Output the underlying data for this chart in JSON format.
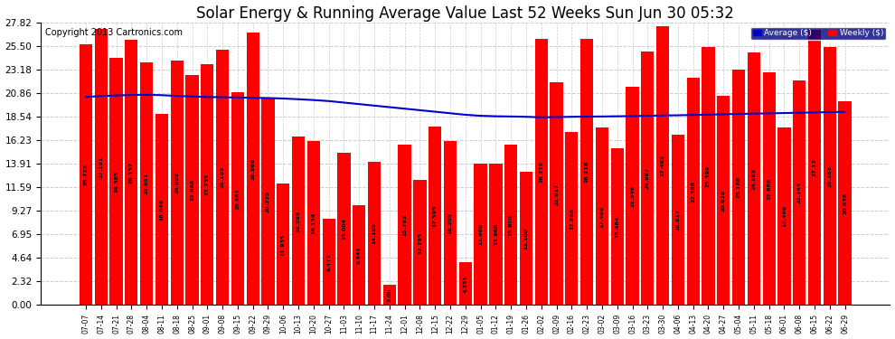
{
  "title": "Solar Energy & Running Average Value Last 52 Weeks Sun Jun 30 05:32",
  "copyright": "Copyright 2013 Cartronics.com",
  "categories": [
    "07-07",
    "07-14",
    "07-21",
    "07-28",
    "08-04",
    "08-11",
    "08-18",
    "08-25",
    "09-01",
    "09-08",
    "09-15",
    "09-22",
    "09-29",
    "10-06",
    "10-13",
    "10-20",
    "10-27",
    "11-03",
    "11-10",
    "11-17",
    "11-24",
    "12-01",
    "12-08",
    "12-15",
    "12-22",
    "12-29",
    "01-05",
    "01-12",
    "01-19",
    "01-26",
    "02-02",
    "02-09",
    "02-16",
    "02-23",
    "03-02",
    "03-09",
    "03-16",
    "03-23",
    "03-30",
    "04-06",
    "04-13",
    "04-20",
    "04-27",
    "05-04",
    "05-11",
    "05-18",
    "06-01",
    "06-08",
    "06-15",
    "06-22",
    "06-29"
  ],
  "bar_values": [
    25.722,
    27.181,
    24.385,
    26.157,
    23.951,
    18.849,
    24.098,
    22.668,
    23.735,
    25.193,
    20.981,
    26.866,
    20.335,
    11.935,
    16.565,
    16.134,
    8.471,
    15.004,
    9.841,
    14.105,
    2.0,
    15.762,
    12.295,
    17.595,
    16.205,
    4.251,
    13.96,
    13.96,
    15.8,
    13.1,
    26.219,
    21.917,
    17.066,
    26.216,
    17.466,
    15.484,
    21.546,
    24.967,
    27.462,
    16.817,
    22.388,
    25.399,
    20.638,
    23.188,
    24.865,
    22.888,
    17.496,
    22.144,
    27.12,
    25.388,
    20.038
  ],
  "bar_labels": [
    "25.722",
    "27.181",
    "24.385",
    "26.157",
    "23.951",
    "18.849",
    "24.098",
    "22.668",
    "23.735",
    "25.193",
    "20.981",
    "26.866",
    "20.335",
    "11.935",
    "16.565",
    "16.134",
    "8.471",
    "15.004",
    "9.841",
    "14.105",
    "2.0b",
    "15.762",
    "12.295",
    "17.595",
    "16.205",
    "4.251",
    "13.960",
    "13.960",
    "15.800",
    "13.100",
    "26.219",
    "21.917",
    "17.066",
    "26.216",
    "17.466",
    "15.484",
    "21.546",
    "24.967",
    "27.462",
    "16.817",
    "22.388",
    "25.399",
    "20.638",
    "23.188",
    "24.865",
    "22.888",
    "17.496",
    "22.144",
    "27.12",
    "25.388",
    "20.038"
  ],
  "avg_values": [
    20.5,
    20.6,
    20.65,
    20.7,
    20.72,
    20.68,
    20.6,
    20.55,
    20.5,
    20.48,
    20.45,
    20.42,
    20.4,
    20.35,
    20.28,
    20.2,
    20.1,
    19.95,
    19.8,
    19.65,
    19.5,
    19.35,
    19.2,
    19.05,
    18.9,
    18.75,
    18.65,
    18.6,
    18.58,
    18.55,
    18.5,
    18.52,
    18.55,
    18.57,
    18.58,
    18.6,
    18.62,
    18.65,
    18.68,
    18.7,
    18.73,
    18.76,
    18.8,
    18.83,
    18.86,
    18.89,
    18.92,
    18.95,
    18.98,
    19.01,
    19.04
  ],
  "bar_color": "#ff0000",
  "avg_line_color": "#0000cc",
  "background_color": "#ffffff",
  "grid_color": "#cccccc",
  "yticks": [
    0.0,
    2.32,
    4.64,
    6.95,
    9.27,
    11.59,
    13.91,
    16.23,
    18.54,
    20.86,
    23.18,
    25.5,
    27.82
  ],
  "ylim": [
    0,
    27.82
  ],
  "title_fontsize": 12,
  "copyright_fontsize": 7,
  "legend_avg_color": "#0000cc",
  "legend_weekly_color": "#ff0000",
  "legend_bg_color": "#000080"
}
